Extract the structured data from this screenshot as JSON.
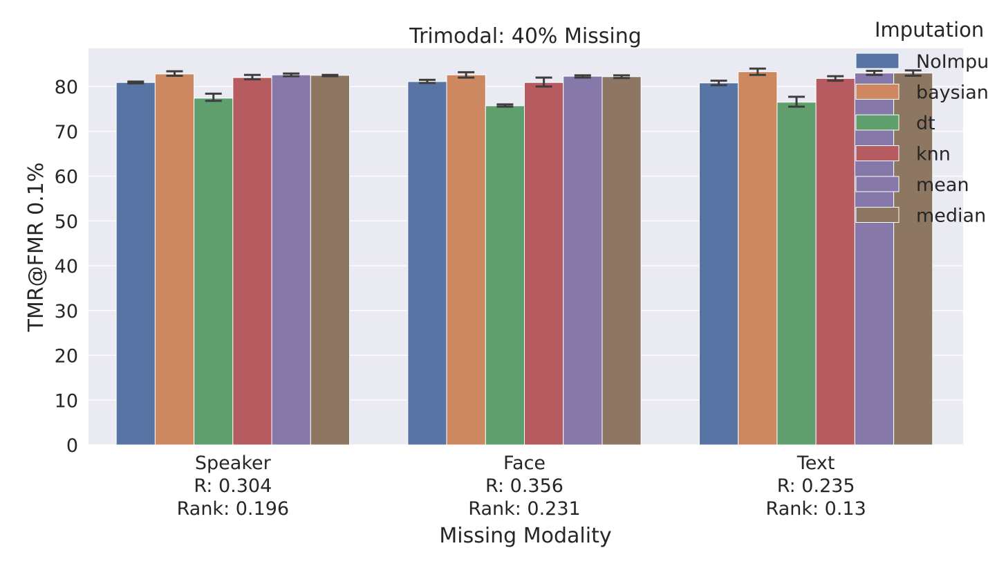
{
  "chart_data": {
    "type": "bar",
    "title": "Trimodal: 40% Missing",
    "xlabel": "Missing Modality",
    "ylabel": "TMR@FMR 0.1%",
    "categories": [
      [
        "Speaker",
        "R: 0.304",
        "Rank: 0.196"
      ],
      [
        "Face",
        "R: 0.356",
        "Rank: 0.231"
      ],
      [
        "Text",
        "R: 0.235",
        "Rank: 0.13"
      ]
    ],
    "ylim": [
      0,
      88.5
    ],
    "yticks": [
      0,
      10,
      20,
      30,
      40,
      50,
      60,
      70,
      80
    ],
    "grid": true,
    "legend_title": "Imputation",
    "legend_position": "top-right",
    "series": [
      {
        "name": "NoImputation",
        "color": "#5874a4",
        "values": [
          80.9,
          81.1,
          80.8
        ],
        "err_low": [
          80.7,
          80.8,
          80.3
        ],
        "err_high": [
          81.1,
          81.5,
          81.3
        ]
      },
      {
        "name": "baysian",
        "color": "#cd8862",
        "values": [
          82.8,
          82.6,
          83.3
        ],
        "err_low": [
          82.4,
          82.0,
          82.6
        ],
        "err_high": [
          83.4,
          83.2,
          84.0
        ]
      },
      {
        "name": "dt",
        "color": "#5f9f6e",
        "values": [
          77.4,
          75.7,
          76.5
        ],
        "err_low": [
          76.8,
          75.5,
          75.5
        ],
        "err_high": [
          78.4,
          76.0,
          77.7
        ]
      },
      {
        "name": "knn",
        "color": "#b65c60",
        "values": [
          82.0,
          80.9,
          81.8
        ],
        "err_low": [
          81.6,
          80.0,
          81.3
        ],
        "err_high": [
          82.6,
          82.0,
          82.3
        ]
      },
      {
        "name": "mean",
        "color": "#8679aa",
        "values": [
          82.6,
          82.3,
          83.0
        ],
        "err_low": [
          82.3,
          82.0,
          82.6
        ],
        "err_high": [
          82.9,
          82.5,
          83.5
        ]
      },
      {
        "name": "median",
        "color": "#8d7763",
        "values": [
          82.5,
          82.2,
          83.0
        ],
        "err_low": [
          82.3,
          81.9,
          82.4
        ],
        "err_high": [
          82.6,
          82.5,
          83.6
        ]
      }
    ]
  }
}
